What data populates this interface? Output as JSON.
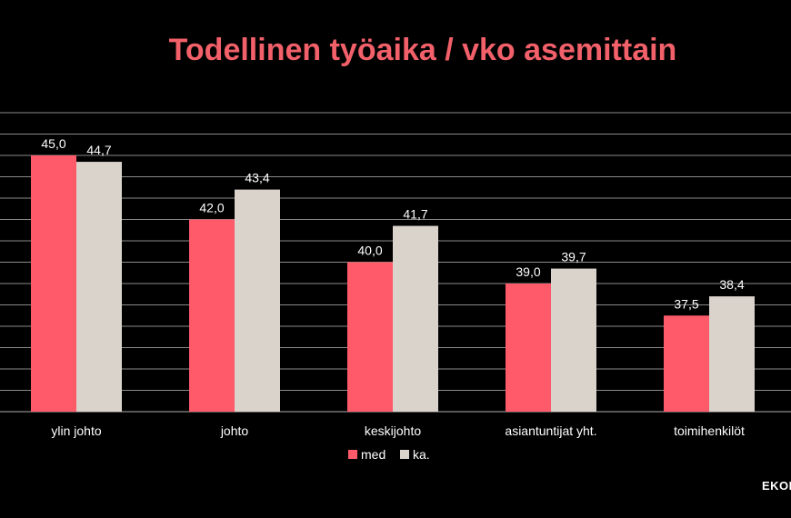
{
  "title": "Todellinen työaika / vko asemittain",
  "brand": "EKON",
  "colors": {
    "med": "#fe5a6a",
    "ka": "#d9d3cb",
    "grid": "#8a8a8a",
    "background": "#000000"
  },
  "chart_data": {
    "type": "bar",
    "title": "Todellinen työaika / vko asemittain",
    "categories": [
      "ylin johto",
      "johto",
      "keskijohto",
      "asiantuntijat yht.",
      "toimihenkilöt"
    ],
    "series": [
      {
        "name": "med",
        "values": [
          45.0,
          42.0,
          40.0,
          39.0,
          37.5
        ],
        "labels": [
          "45,0",
          "42,0",
          "40,0",
          "39,0",
          "37,5"
        ]
      },
      {
        "name": "ka.",
        "values": [
          44.7,
          43.4,
          41.7,
          39.7,
          38.4
        ],
        "labels": [
          "44,7",
          "43,4",
          "41,7",
          "39,7",
          "38,4"
        ]
      }
    ],
    "ylim": [
      33,
      47
    ],
    "grid": true,
    "legend_position": "bottom"
  }
}
